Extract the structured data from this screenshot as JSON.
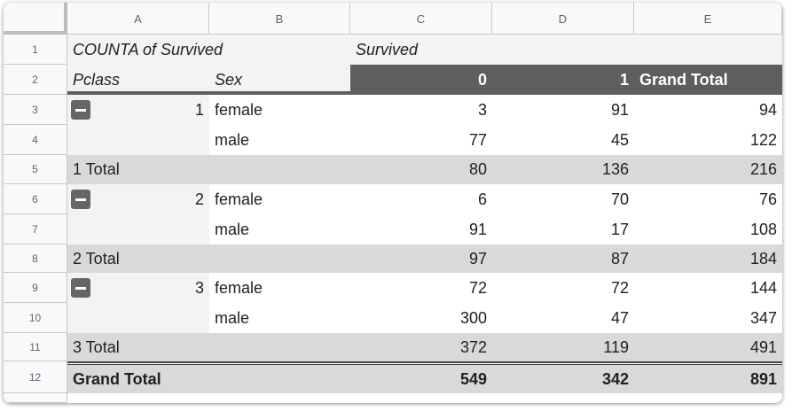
{
  "column_headers": [
    "A",
    "B",
    "C",
    "D",
    "E"
  ],
  "row_headers": [
    "1",
    "2",
    "3",
    "4",
    "5",
    "6",
    "7",
    "8",
    "9",
    "10",
    "11",
    "12"
  ],
  "pivot": {
    "title": "COUNTA of Survived",
    "col_field": "Survived",
    "row_field_1": "Pclass",
    "row_field_2": "Sex",
    "col_values": [
      "0",
      "1",
      "Grand Total"
    ],
    "groups": [
      {
        "pclass": "1",
        "rows": [
          {
            "sex": "female",
            "v0": "3",
            "v1": "91",
            "total": "94"
          },
          {
            "sex": "male",
            "v0": "77",
            "v1": "45",
            "total": "122"
          }
        ],
        "total_label": "1 Total",
        "t0": "80",
        "t1": "136",
        "tt": "216"
      },
      {
        "pclass": "2",
        "rows": [
          {
            "sex": "female",
            "v0": "6",
            "v1": "70",
            "total": "76"
          },
          {
            "sex": "male",
            "v0": "91",
            "v1": "17",
            "total": "108"
          }
        ],
        "total_label": "2 Total",
        "t0": "97",
        "t1": "87",
        "tt": "184"
      },
      {
        "pclass": "3",
        "rows": [
          {
            "sex": "female",
            "v0": "72",
            "v1": "72",
            "total": "144"
          },
          {
            "sex": "male",
            "v0": "300",
            "v1": "47",
            "total": "347"
          }
        ],
        "total_label": "3 Total",
        "t0": "372",
        "t1": "119",
        "tt": "491"
      }
    ],
    "grand_total": {
      "label": "Grand Total",
      "v0": "549",
      "v1": "342",
      "total": "891"
    }
  },
  "colors": {
    "header_bar": "#5e5e5e",
    "total_row": "#d9d9d9",
    "label_cells": "#f3f3f3"
  },
  "icons": {
    "collapse": "minus-icon"
  }
}
